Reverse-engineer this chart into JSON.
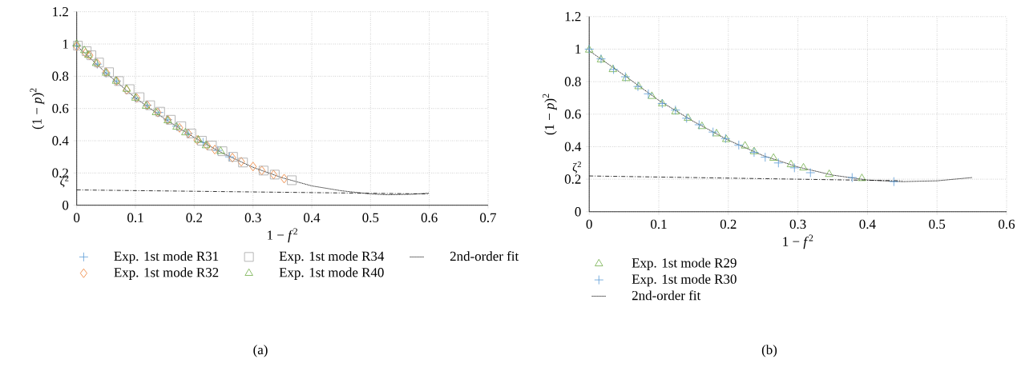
{
  "chart_data": [
    {
      "type": "scatter",
      "title": "(a)",
      "xlabel": "1 − *f*$^{2}$",
      "ylabel": "(1 − *p*)$^{2}$",
      "xlim": [
        0,
        0.7
      ],
      "xticks": [
        0,
        0.1,
        0.2,
        0.3,
        0.4,
        0.5,
        0.6,
        0.7
      ],
      "ylim": [
        0,
        1.2
      ],
      "yticks": [
        0,
        0.2,
        0.4,
        0.6,
        0.8,
        1,
        1.2
      ],
      "grid": true,
      "legend": "bottom",
      "annotations": [
        {
          "text": "ζ$^{2}$",
          "x": 0,
          "y": 0.095
        }
      ],
      "series": [
        {
          "name": "Exp. 1st mode R31",
          "color": "#5b9bd5",
          "marker": "cross",
          "x": [
            0,
            0.035,
            0.05,
            0.068,
            0.1,
            0.12,
            0.14,
            0.155,
            0.17,
            0.19,
            0.215,
            0.24,
            0.26
          ],
          "values": [
            0.99,
            0.875,
            0.82,
            0.77,
            0.665,
            0.62,
            0.575,
            0.53,
            0.49,
            0.445,
            0.39,
            0.34,
            0.3
          ]
        },
        {
          "name": "Exp. 1st mode R32",
          "color": "#ed7d31",
          "marker": "diamond",
          "x": [
            0,
            0.015,
            0.022,
            0.035,
            0.05,
            0.068,
            0.085,
            0.102,
            0.12,
            0.138,
            0.155,
            0.175,
            0.19,
            0.205,
            0.222,
            0.235,
            0.265,
            0.28,
            0.3,
            0.315,
            0.335,
            0.353
          ],
          "values": [
            0.985,
            0.945,
            0.93,
            0.88,
            0.825,
            0.77,
            0.715,
            0.665,
            0.62,
            0.575,
            0.53,
            0.48,
            0.445,
            0.405,
            0.37,
            0.345,
            0.295,
            0.27,
            0.24,
            0.215,
            0.19,
            0.165
          ]
        },
        {
          "name": "Exp. 1st mode R34",
          "color": "#a5a5a5",
          "marker": "square",
          "x": [
            0.002,
            0.017,
            0.025,
            0.038,
            0.055,
            0.072,
            0.09,
            0.107,
            0.125,
            0.142,
            0.16,
            0.178,
            0.195,
            0.213,
            0.23,
            0.248,
            0.266,
            0.283,
            0.318,
            0.337,
            0.366
          ],
          "values": [
            0.99,
            0.955,
            0.93,
            0.885,
            0.825,
            0.77,
            0.72,
            0.67,
            0.62,
            0.58,
            0.53,
            0.49,
            0.445,
            0.4,
            0.37,
            0.335,
            0.3,
            0.265,
            0.215,
            0.19,
            0.155
          ]
        },
        {
          "name": "Exp. 1st mode R40",
          "color": "#70ad47",
          "marker": "triangle",
          "x": [
            0,
            0.013,
            0.02,
            0.033,
            0.05,
            0.067,
            0.085,
            0.1,
            0.118,
            0.135,
            0.155,
            0.17,
            0.185,
            0.207,
            0.22,
            0.245
          ],
          "values": [
            1.0,
            0.96,
            0.93,
            0.88,
            0.82,
            0.77,
            0.72,
            0.665,
            0.615,
            0.575,
            0.525,
            0.485,
            0.45,
            0.405,
            0.37,
            0.335
          ]
        },
        {
          "name": "2nd-order fit",
          "type": "line",
          "line_style": "dotted",
          "color": "#000000",
          "x": [
            0,
            0.05,
            0.1,
            0.15,
            0.2,
            0.25,
            0.3,
            0.35,
            0.4,
            0.45,
            0.5,
            0.53,
            0.57,
            0.6
          ],
          "values": [
            0.99,
            0.82,
            0.665,
            0.535,
            0.42,
            0.32,
            0.235,
            0.17,
            0.12,
            0.09,
            0.07,
            0.065,
            0.068,
            0.075
          ]
        },
        {
          "type": "line",
          "line_style": "dashdot",
          "color": "#000000",
          "x": [
            0,
            0.6
          ],
          "values": [
            0.095,
            0.07
          ]
        }
      ]
    },
    {
      "type": "scatter",
      "title": "(b)",
      "xlabel": "1 − *f*$^{2}$",
      "ylabel": "(1 − *p*)$^{2}$",
      "xlim": [
        0,
        0.6
      ],
      "xticks": [
        0,
        0.1,
        0.2,
        0.3,
        0.4,
        0.5,
        0.6
      ],
      "ylim": [
        0,
        1.2
      ],
      "yticks": [
        0,
        0.2,
        0.4,
        0.6,
        0.8,
        1,
        1.2
      ],
      "grid": true,
      "legend": "bottom",
      "annotations": [
        {
          "text": "ζ$^{2}$",
          "x": 0,
          "y": 0.22
        }
      ],
      "series": [
        {
          "name": "Exp. 1st mode R29",
          "color": "#70ad47",
          "marker": "triangle",
          "x": [
            0,
            0.017,
            0.034,
            0.053,
            0.071,
            0.09,
            0.105,
            0.124,
            0.142,
            0.162,
            0.183,
            0.197,
            0.224,
            0.237,
            0.265,
            0.29,
            0.308,
            0.345,
            0.392
          ],
          "values": [
            0.995,
            0.935,
            0.875,
            0.82,
            0.77,
            0.71,
            0.665,
            0.615,
            0.575,
            0.525,
            0.48,
            0.445,
            0.405,
            0.37,
            0.33,
            0.29,
            0.27,
            0.23,
            0.205
          ]
        },
        {
          "name": "Exp. 1st mode R30",
          "color": "#5b9bd5",
          "marker": "cross",
          "x": [
            0,
            0.017,
            0.035,
            0.052,
            0.07,
            0.085,
            0.105,
            0.124,
            0.14,
            0.158,
            0.178,
            0.196,
            0.215,
            0.237,
            0.253,
            0.272,
            0.295,
            0.318,
            0.378,
            0.438
          ],
          "values": [
            1.0,
            0.94,
            0.875,
            0.83,
            0.77,
            0.725,
            0.665,
            0.625,
            0.575,
            0.535,
            0.49,
            0.45,
            0.41,
            0.365,
            0.335,
            0.3,
            0.27,
            0.24,
            0.21,
            0.185
          ]
        },
        {
          "name": "2nd-order fit",
          "type": "line",
          "line_style": "dotted",
          "color": "#000000",
          "x": [
            0,
            0.05,
            0.1,
            0.15,
            0.2,
            0.25,
            0.3,
            0.35,
            0.4,
            0.45,
            0.5,
            0.55
          ],
          "values": [
            0.99,
            0.84,
            0.685,
            0.555,
            0.44,
            0.345,
            0.275,
            0.225,
            0.195,
            0.185,
            0.19,
            0.21
          ]
        },
        {
          "type": "line",
          "line_style": "dashdot",
          "color": "#000000",
          "x": [
            0,
            0.45
          ],
          "values": [
            0.22,
            0.19
          ]
        }
      ]
    }
  ]
}
